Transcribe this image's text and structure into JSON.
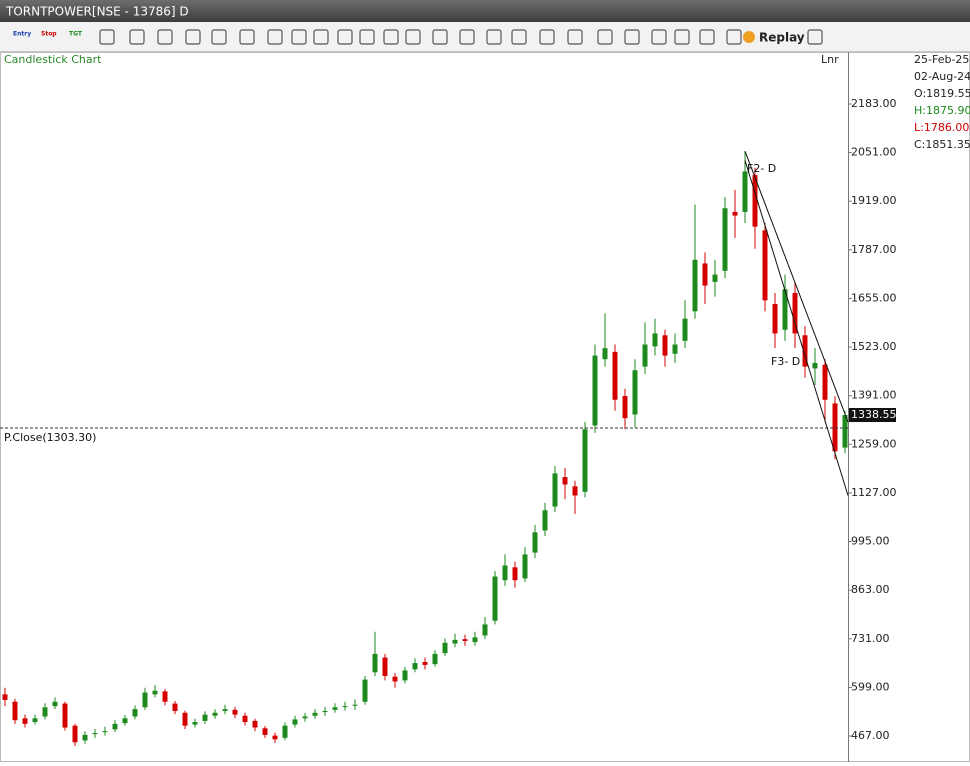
{
  "window": {
    "title": "TORNTPOWER[NSE - 13786] D"
  },
  "toolbar": {
    "entry": "Entry",
    "stop": "Stop",
    "tgt": "TGT",
    "replay": "Replay"
  },
  "info_panel": {
    "date_top": "25-Feb-25",
    "date": "02-Aug-24",
    "open": "O:1819.55",
    "high": "H:1875.90",
    "low": "L:1786.00",
    "close": "C:1851.35"
  },
  "chart_data": {
    "type": "candlestick",
    "title": "Candlestick Chart",
    "scale_label": "Lnr",
    "up_color": "#1e8a1e",
    "down_color": "#d40000",
    "open": [
      580,
      560,
      515,
      505,
      520,
      548,
      555,
      495,
      455,
      472,
      478,
      485,
      502,
      520,
      545,
      580,
      588,
      555,
      530,
      498,
      508,
      522,
      535,
      538,
      522,
      508,
      488,
      468,
      462,
      498,
      515,
      522,
      532,
      538,
      546,
      550,
      560,
      640,
      680,
      628,
      618,
      648,
      668,
      662,
      692,
      718,
      730,
      722,
      740,
      780,
      890,
      925,
      895,
      965,
      1025,
      1090,
      1170,
      1145,
      1130,
      1310,
      1490,
      1510,
      1390,
      1340,
      1470,
      1525,
      1555,
      1505,
      1540,
      1620,
      1750,
      1700,
      1730,
      1890,
      1890,
      1990,
      1840,
      1640,
      1570,
      1670,
      1555,
      1465,
      1475,
      1370,
      1250
    ],
    "high": [
      598,
      568,
      525,
      525,
      556,
      572,
      560,
      500,
      480,
      486,
      492,
      510,
      524,
      550,
      598,
      605,
      595,
      562,
      536,
      514,
      534,
      540,
      552,
      546,
      530,
      514,
      494,
      476,
      504,
      522,
      530,
      540,
      546,
      556,
      560,
      566,
      630,
      750,
      690,
      638,
      655,
      678,
      680,
      700,
      732,
      745,
      742,
      750,
      790,
      915,
      960,
      940,
      980,
      1040,
      1100,
      1200,
      1195,
      1160,
      1320,
      1530,
      1615,
      1530,
      1410,
      1490,
      1590,
      1600,
      1570,
      1560,
      1650,
      1910,
      1780,
      1760,
      1930,
      1950,
      2055,
      2010,
      1860,
      1670,
      1720,
      1700,
      1580,
      1520,
      1490,
      1390,
      1350
    ],
    "low": [
      548,
      500,
      490,
      498,
      512,
      540,
      482,
      440,
      446,
      462,
      468,
      478,
      495,
      512,
      538,
      572,
      550,
      526,
      486,
      490,
      500,
      514,
      526,
      516,
      496,
      480,
      462,
      448,
      455,
      490,
      506,
      514,
      522,
      530,
      536,
      538,
      552,
      630,
      618,
      598,
      610,
      640,
      648,
      655,
      685,
      708,
      712,
      712,
      730,
      770,
      875,
      870,
      885,
      950,
      1010,
      1075,
      1110,
      1070,
      1115,
      1290,
      1470,
      1350,
      1300,
      1305,
      1450,
      1500,
      1470,
      1480,
      1520,
      1600,
      1640,
      1660,
      1710,
      1820,
      1860,
      1790,
      1620,
      1520,
      1540,
      1520,
      1440,
      1420,
      1320,
      1218,
      1235
    ],
    "close": [
      565,
      510,
      500,
      515,
      545,
      560,
      490,
      450,
      470,
      475,
      480,
      500,
      515,
      540,
      585,
      590,
      560,
      535,
      495,
      505,
      525,
      530,
      540,
      525,
      505,
      490,
      470,
      458,
      495,
      512,
      520,
      530,
      535,
      545,
      548,
      552,
      620,
      690,
      630,
      615,
      645,
      665,
      660,
      690,
      720,
      728,
      725,
      735,
      770,
      900,
      930,
      890,
      960,
      1020,
      1080,
      1180,
      1150,
      1120,
      1300,
      1500,
      1520,
      1380,
      1330,
      1460,
      1530,
      1560,
      1500,
      1530,
      1600,
      1760,
      1690,
      1720,
      1900,
      1880,
      2000,
      1850,
      1650,
      1560,
      1680,
      1560,
      1470,
      1480,
      1380,
      1240,
      1338.55
    ],
    "ylim": [
      396.4,
      2324.2
    ],
    "yticks": [
      {
        "value": 467,
        "label": "467.00"
      },
      {
        "value": 599,
        "label": "599.00"
      },
      {
        "value": 731,
        "label": "731.00"
      },
      {
        "value": 863,
        "label": "863.00"
      },
      {
        "value": 995,
        "label": "995.00"
      },
      {
        "value": 1127,
        "label": "1127.00"
      },
      {
        "value": 1259,
        "label": "1259.00"
      },
      {
        "value": 1391,
        "label": "1391.00"
      },
      {
        "value": 1523,
        "label": "1523.00"
      },
      {
        "value": 1655,
        "label": "1655.00"
      },
      {
        "value": 1787,
        "label": "1787.00"
      },
      {
        "value": 1919,
        "label": "1919.00"
      },
      {
        "value": 2051,
        "label": "2051.00"
      },
      {
        "value": 2183,
        "label": "2183.00"
      }
    ],
    "prev_close": {
      "value": 1303.3,
      "label": "P.Close(1303.30)"
    },
    "trendlines": [
      {
        "x": [
          74,
          84.3
        ],
        "y": [
          2055,
          1320
        ]
      },
      {
        "x": [
          74,
          84.3
        ],
        "y": [
          2030,
          1120
        ]
      }
    ],
    "annotations": [
      "F2- D",
      "F3- D"
    ]
  }
}
